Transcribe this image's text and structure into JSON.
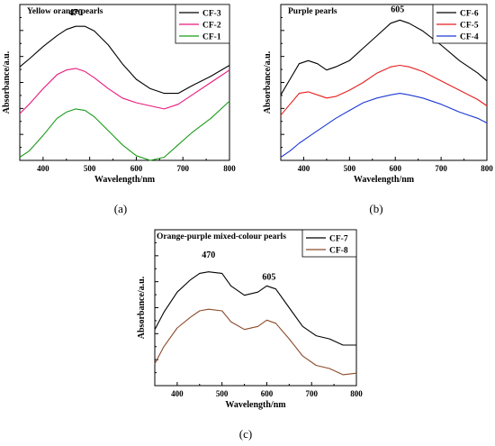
{
  "chart_data": [
    {
      "type": "line",
      "panel_label": "(a)",
      "title": "Yellow orange pearls",
      "xlabel": "Wavelength/nm",
      "ylabel": "Absorbance/a.u.",
      "xlim": [
        350,
        800
      ],
      "ylim": [
        0,
        1
      ],
      "xticks": [
        400,
        500,
        600,
        700,
        800
      ],
      "annotations": [
        {
          "text": "470",
          "x": 470,
          "y": 0.93
        }
      ],
      "legend_position": "top-right",
      "grid": false,
      "series": [
        {
          "name": "CF-3",
          "color": "#000000",
          "x": [
            350,
            370,
            400,
            430,
            450,
            470,
            490,
            510,
            540,
            570,
            600,
            630,
            660,
            690,
            720,
            760,
            800
          ],
          "y": [
            0.6,
            0.65,
            0.73,
            0.8,
            0.84,
            0.86,
            0.86,
            0.83,
            0.74,
            0.62,
            0.52,
            0.46,
            0.43,
            0.43,
            0.48,
            0.54,
            0.61
          ]
        },
        {
          "name": "CF-2",
          "color": "#e8197d",
          "x": [
            350,
            370,
            400,
            430,
            450,
            470,
            490,
            510,
            540,
            570,
            600,
            630,
            660,
            690,
            720,
            760,
            800
          ],
          "y": [
            0.3,
            0.36,
            0.46,
            0.55,
            0.58,
            0.59,
            0.57,
            0.53,
            0.46,
            0.4,
            0.37,
            0.35,
            0.33,
            0.36,
            0.42,
            0.5,
            0.58
          ]
        },
        {
          "name": "CF-1",
          "color": "#1a9a1a",
          "x": [
            350,
            370,
            400,
            430,
            450,
            470,
            490,
            510,
            540,
            570,
            600,
            630,
            660,
            690,
            720,
            760,
            800
          ],
          "y": [
            0.02,
            0.06,
            0.16,
            0.27,
            0.31,
            0.33,
            0.32,
            0.28,
            0.19,
            0.1,
            0.03,
            0.0,
            0.02,
            0.1,
            0.18,
            0.27,
            0.38
          ]
        }
      ]
    },
    {
      "type": "line",
      "panel_label": "(b)",
      "title": "Purple pearls",
      "xlabel": "Wavelength/nm",
      "ylabel": "Absorbance/a.u.",
      "xlim": [
        350,
        800
      ],
      "ylim": [
        0,
        1
      ],
      "xticks": [
        400,
        500,
        600,
        700,
        800
      ],
      "annotations": [
        {
          "text": "605",
          "x": 605,
          "y": 0.95
        }
      ],
      "legend_position": "top-right",
      "grid": false,
      "series": [
        {
          "name": "CF-6",
          "color": "#000000",
          "x": [
            350,
            370,
            390,
            410,
            430,
            450,
            470,
            500,
            530,
            560,
            590,
            610,
            630,
            660,
            700,
            740,
            780,
            800
          ],
          "y": [
            0.42,
            0.52,
            0.62,
            0.64,
            0.62,
            0.58,
            0.6,
            0.64,
            0.72,
            0.8,
            0.88,
            0.9,
            0.88,
            0.83,
            0.74,
            0.64,
            0.56,
            0.51
          ]
        },
        {
          "name": "CF-5",
          "color": "#e81e1e",
          "x": [
            350,
            370,
            390,
            410,
            430,
            450,
            470,
            500,
            530,
            560,
            590,
            610,
            630,
            660,
            700,
            740,
            780,
            800
          ],
          "y": [
            0.29,
            0.36,
            0.43,
            0.44,
            0.42,
            0.4,
            0.41,
            0.45,
            0.5,
            0.56,
            0.6,
            0.61,
            0.6,
            0.57,
            0.51,
            0.45,
            0.39,
            0.35
          ]
        },
        {
          "name": "CF-4",
          "color": "#1e3ad2",
          "x": [
            350,
            370,
            390,
            410,
            430,
            450,
            470,
            500,
            530,
            560,
            590,
            610,
            630,
            660,
            700,
            740,
            780,
            800
          ],
          "y": [
            0.02,
            0.06,
            0.11,
            0.15,
            0.19,
            0.23,
            0.27,
            0.32,
            0.37,
            0.4,
            0.42,
            0.43,
            0.42,
            0.4,
            0.36,
            0.31,
            0.27,
            0.24
          ]
        }
      ]
    },
    {
      "type": "line",
      "panel_label": "(c)",
      "title": "Orange-purple mixed-colour pearls",
      "xlabel": "Wavelength/nm",
      "ylabel": "Absorbance/a.u.",
      "xlim": [
        350,
        800
      ],
      "ylim": [
        0,
        1
      ],
      "xticks": [
        400,
        500,
        600,
        700,
        800
      ],
      "annotations": [
        {
          "text": "470",
          "x": 470,
          "y": 0.82
        },
        {
          "text": "605",
          "x": 605,
          "y": 0.68
        }
      ],
      "legend_position": "top-right",
      "grid": false,
      "series": [
        {
          "name": "CF-7",
          "color": "#000000",
          "x": [
            350,
            370,
            400,
            430,
            450,
            470,
            500,
            520,
            550,
            580,
            600,
            620,
            650,
            680,
            710,
            740,
            770,
            800
          ],
          "y": [
            0.36,
            0.47,
            0.6,
            0.68,
            0.72,
            0.73,
            0.72,
            0.64,
            0.58,
            0.6,
            0.64,
            0.62,
            0.5,
            0.38,
            0.32,
            0.3,
            0.26,
            0.26
          ]
        },
        {
          "name": "CF-8",
          "color": "#8b4a2a",
          "x": [
            350,
            370,
            400,
            430,
            450,
            470,
            500,
            520,
            550,
            580,
            600,
            620,
            650,
            680,
            710,
            740,
            770,
            800
          ],
          "y": [
            0.14,
            0.25,
            0.37,
            0.44,
            0.48,
            0.49,
            0.48,
            0.41,
            0.36,
            0.38,
            0.42,
            0.4,
            0.3,
            0.19,
            0.13,
            0.11,
            0.07,
            0.08
          ]
        }
      ]
    }
  ]
}
